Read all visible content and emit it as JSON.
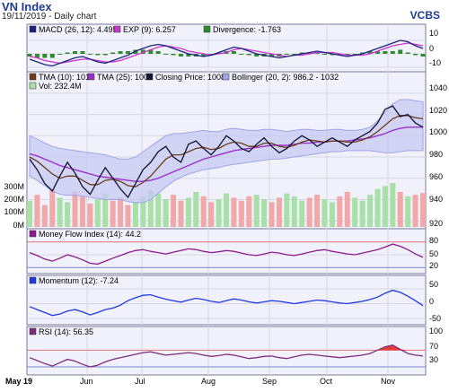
{
  "header": {
    "title": "VN Index",
    "subtitle": "19/11/2019 - Daily chart",
    "brand": "VCBS"
  },
  "colors": {
    "macd": "#1a237e",
    "signal": "#cc33cc",
    "divergence": "#2e8b2e",
    "tma10": "#6b3b1e",
    "tma25": "#9b30c8",
    "close": "#111133",
    "bollinger_fill": "#c6c9f2",
    "bollinger_edge": "#9fa4e6",
    "vol_up": "#a8e0a8",
    "vol_down": "#f0a8a8",
    "mfi": "#8b1a8b",
    "momentum": "#1f3adf",
    "rsi": "#7b2d7b",
    "rsi_over": "#e53935",
    "panel_bg": "#f1f1fb",
    "grid": "#d7d7e6"
  },
  "x_axis": {
    "labels": [
      "May 19",
      "Jun",
      "Jul",
      "Aug",
      "Sep",
      "Oct",
      "Nov"
    ]
  },
  "macd_panel": {
    "legend": [
      {
        "label": "MACD (26, 12): 4.495",
        "color": "#1a237e"
      },
      {
        "label": "EXP (9): 6.257",
        "color": "#cc33cc"
      },
      {
        "label": "Divergence: -1.763",
        "color": "#2e8b2e"
      }
    ],
    "yticks": [
      "10",
      "0",
      "-10"
    ]
  },
  "price_panel": {
    "legend": [
      {
        "label": "TMA (10): 1016",
        "color": "#6b3b1e"
      },
      {
        "label": "TMA (25): 1008",
        "color": "#9b30c8"
      },
      {
        "label": "Closing Price: 1008",
        "color": "#111133"
      },
      {
        "label": "Bollinger (20, 2): 986.2 - 1032",
        "color": "#9fa4e6"
      },
      {
        "label": "Vol: 232.4M",
        "color": "#a8e0a8"
      }
    ],
    "yticks": [
      "1040",
      "1020",
      "1000",
      "980",
      "960",
      "940",
      "920"
    ],
    "vol_ticks": [
      "300M",
      "200M",
      "100M",
      "0M"
    ]
  },
  "mfi_panel": {
    "legend": [
      {
        "label": "Money Flow Index (14): 44.2",
        "color": "#8b1a8b"
      }
    ],
    "yticks": [
      "80",
      "50",
      "20"
    ]
  },
  "momentum_panel": {
    "legend": [
      {
        "label": "Momentum (12): -7.24",
        "color": "#1f3adf"
      }
    ],
    "yticks": [
      "50",
      "0",
      "-50"
    ]
  },
  "rsi_panel": {
    "legend": [
      {
        "label": "RSI (14): 56.35",
        "color": "#7b2d7b"
      }
    ],
    "yticks": [
      "100",
      "70",
      "30"
    ]
  },
  "chart_data": [
    {
      "type": "line",
      "title": "MACD (26, 12)",
      "y_range": [
        -12,
        14
      ],
      "series": [
        {
          "name": "MACD (26, 12)",
          "values": [
            -4,
            -6,
            -8,
            -9,
            -7,
            -5,
            -3,
            -2,
            -4,
            -6,
            -7,
            -5,
            -3,
            -1,
            2,
            4,
            6,
            7,
            6,
            4,
            2,
            0,
            -1,
            -2,
            -1,
            1,
            3,
            5,
            4,
            2,
            0,
            -1,
            -2,
            -3,
            -2,
            -1,
            0,
            1,
            2,
            1,
            0,
            -1,
            -2,
            -1,
            0,
            2,
            4,
            6,
            8,
            10,
            9,
            6,
            4
          ]
        },
        {
          "name": "EXP (9)",
          "values": [
            -2,
            -3,
            -5,
            -6,
            -7,
            -6,
            -5,
            -4,
            -4,
            -5,
            -6,
            -6,
            -5,
            -3,
            -1,
            1,
            3,
            5,
            6,
            5,
            4,
            2,
            1,
            0,
            -1,
            0,
            1,
            3,
            4,
            3,
            2,
            1,
            0,
            -1,
            -2,
            -1,
            -1,
            0,
            1,
            1,
            1,
            0,
            -1,
            -1,
            -1,
            0,
            2,
            4,
            6,
            7,
            8,
            7,
            6
          ]
        },
        {
          "name": "Divergence",
          "values": [
            -2,
            -3,
            -3,
            -3,
            0,
            1,
            2,
            2,
            0,
            -1,
            -1,
            1,
            2,
            2,
            3,
            3,
            3,
            2,
            0,
            -1,
            -2,
            -2,
            -2,
            -2,
            0,
            1,
            2,
            2,
            0,
            -1,
            -2,
            -2,
            -2,
            -2,
            0,
            0,
            1,
            1,
            1,
            0,
            -1,
            -1,
            -1,
            0,
            1,
            2,
            2,
            2,
            2,
            3,
            1,
            -1,
            -2
          ]
        }
      ]
    },
    {
      "type": "line",
      "title": "Price",
      "y_range": [
        915,
        1045
      ],
      "series": [
        {
          "name": "Closing Price",
          "values": [
            978,
            968,
            955,
            948,
            962,
            975,
            965,
            952,
            945,
            958,
            970,
            960,
            950,
            942,
            955,
            968,
            975,
            985,
            990,
            980,
            975,
            992,
            995,
            988,
            982,
            990,
            1000,
            995,
            988,
            985,
            992,
            998,
            990,
            984,
            988,
            995,
            1000,
            996,
            990,
            994,
            998,
            994,
            990,
            996,
            1000,
            1004,
            1012,
            1025,
            1028,
            1018,
            1020,
            1012,
            1008
          ]
        },
        {
          "name": "TMA (10)",
          "values": [
            980,
            976,
            970,
            964,
            960,
            962,
            962,
            958,
            954,
            954,
            958,
            959,
            957,
            953,
            952,
            956,
            962,
            970,
            978,
            982,
            982,
            985,
            988,
            989,
            987,
            988,
            992,
            994,
            993,
            990,
            990,
            993,
            993,
            990,
            989,
            991,
            994,
            996,
            995,
            994,
            995,
            995,
            994,
            994,
            996,
            999,
            1004,
            1010,
            1016,
            1019,
            1019,
            1017,
            1016
          ]
        },
        {
          "name": "TMA (25)",
          "values": [
            983,
            981,
            978,
            975,
            972,
            970,
            968,
            966,
            964,
            962,
            961,
            960,
            959,
            958,
            957,
            957,
            958,
            960,
            963,
            966,
            969,
            972,
            975,
            978,
            980,
            982,
            984,
            986,
            987,
            988,
            989,
            990,
            991,
            991,
            991,
            992,
            993,
            993,
            994,
            994,
            995,
            995,
            995,
            996,
            997,
            998,
            1000,
            1002,
            1005,
            1007,
            1008,
            1008,
            1008
          ]
        },
        {
          "name": "Bollinger Upper",
          "values": [
            1000,
            997,
            993,
            990,
            988,
            987,
            986,
            985,
            984,
            983,
            982,
            980,
            978,
            978,
            980,
            985,
            990,
            995,
            1000,
            1002,
            1002,
            1003,
            1004,
            1005,
            1004,
            1004,
            1006,
            1007,
            1006,
            1005,
            1005,
            1006,
            1006,
            1005,
            1004,
            1005,
            1006,
            1006,
            1005,
            1005,
            1006,
            1006,
            1005,
            1005,
            1006,
            1008,
            1014,
            1022,
            1030,
            1034,
            1034,
            1033,
            1032
          ]
        },
        {
          "name": "Bollinger Lower",
          "values": [
            962,
            958,
            953,
            948,
            945,
            944,
            944,
            943,
            942,
            941,
            940,
            940,
            940,
            938,
            937,
            937,
            940,
            946,
            952,
            957,
            961,
            964,
            966,
            968,
            969,
            970,
            972,
            973,
            974,
            975,
            976,
            977,
            978,
            978,
            979,
            980,
            981,
            982,
            983,
            984,
            985,
            985,
            986,
            986,
            986,
            986,
            985,
            984,
            984,
            985,
            986,
            986,
            986
          ]
        }
      ]
    },
    {
      "type": "bar",
      "title": "Vol",
      "y_range": [
        0,
        350
      ],
      "values": [
        180,
        220,
        150,
        260,
        200,
        170,
        240,
        210,
        160,
        190,
        230,
        180,
        200,
        150,
        170,
        210,
        250,
        230,
        190,
        220,
        180,
        200,
        240,
        210,
        170,
        190,
        230,
        200,
        180,
        210,
        220,
        190,
        170,
        200,
        230,
        210,
        180,
        200,
        220,
        190,
        170,
        210,
        240,
        200,
        180,
        220,
        260,
        280,
        300,
        240,
        210,
        220,
        232
      ]
    },
    {
      "type": "line",
      "title": "Money Flow Index (14)",
      "y_range": [
        10,
        90
      ],
      "series": [
        {
          "name": "Money Flow Index (14)",
          "values": [
            55,
            48,
            40,
            35,
            42,
            50,
            45,
            38,
            30,
            28,
            35,
            42,
            48,
            55,
            60,
            62,
            58,
            55,
            52,
            56,
            60,
            64,
            62,
            58,
            55,
            57,
            60,
            58,
            54,
            50,
            48,
            52,
            56,
            54,
            50,
            48,
            52,
            56,
            60,
            62,
            58,
            55,
            52,
            50,
            54,
            58,
            62,
            68,
            75,
            70,
            62,
            52,
            44
          ]
        }
      ]
    },
    {
      "type": "line",
      "title": "Momentum (12)",
      "y_range": [
        -65,
        65
      ],
      "series": [
        {
          "name": "Momentum (12)",
          "values": [
            -10,
            -20,
            -30,
            -40,
            -35,
            -25,
            -20,
            -28,
            -38,
            -30,
            -20,
            -15,
            -5,
            10,
            20,
            28,
            30,
            22,
            15,
            10,
            5,
            12,
            18,
            14,
            8,
            4,
            10,
            16,
            12,
            6,
            2,
            6,
            10,
            8,
            4,
            0,
            4,
            8,
            12,
            10,
            6,
            2,
            0,
            4,
            8,
            14,
            22,
            35,
            45,
            38,
            25,
            10,
            -7
          ]
        }
      ]
    },
    {
      "type": "line",
      "title": "RSI (14)",
      "y_range": [
        15,
        105
      ],
      "series": [
        {
          "name": "RSI (14)",
          "values": [
            52,
            45,
            38,
            32,
            40,
            48,
            44,
            36,
            30,
            34,
            42,
            48,
            52,
            56,
            60,
            64,
            66,
            62,
            58,
            60,
            62,
            64,
            62,
            58,
            55,
            57,
            60,
            58,
            54,
            50,
            52,
            55,
            56,
            52,
            50,
            54,
            58,
            60,
            58,
            56,
            54,
            52,
            54,
            56,
            58,
            62,
            70,
            78,
            82,
            72,
            62,
            58,
            56
          ]
        }
      ]
    }
  ]
}
